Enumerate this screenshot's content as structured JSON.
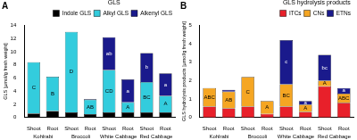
{
  "chart_data": [
    {
      "type": "bar",
      "panel": "A",
      "title": "GLS",
      "y_label": "GLS [µmol/g fresh weight]",
      "categories": [
        "Shoot",
        "Root",
        "Shoot",
        "Root",
        "Shoot",
        "Root",
        "Shoot",
        "Root"
      ],
      "groups": [
        "Kohlrabi",
        "Broccoli",
        "White Cabbage",
        "Red Cabbage"
      ],
      "stacked": true,
      "grid": false,
      "legend": "top",
      "ylim": [
        0,
        14
      ],
      "yticks": [
        0,
        2,
        4,
        6,
        8,
        10,
        12,
        14
      ],
      "series": [
        {
          "name": "Indole GLS",
          "color": "#000000",
          "values": [
            0.6,
            1.0,
            0.8,
            0.5,
            0.8,
            0.8,
            0.8,
            0.8
          ]
        },
        {
          "name": "Alkyl GLS",
          "color": "#33ccdd",
          "values": [
            7.8,
            5.2,
            12.2,
            2.2,
            6.4,
            1.5,
            4.6,
            2.5
          ],
          "letters": [
            "C",
            "B",
            "D",
            "AB",
            "CD",
            "A",
            "BC",
            "A"
          ]
        },
        {
          "name": "Alkenyl GLS",
          "color": "#1a1a8c",
          "values": [
            0,
            0,
            0,
            0.1,
            5.0,
            3.5,
            4.4,
            3.4
          ],
          "letters": [
            null,
            null,
            null,
            null,
            "ab",
            "a",
            "b",
            "a"
          ]
        }
      ]
    },
    {
      "type": "bar",
      "panel": "B",
      "title": "GLS hydrolysis products",
      "y_label": "GLS hydrolysis products [µmol/g fresh weight]",
      "categories": [
        "Shoot",
        "Root",
        "Shoot",
        "Root",
        "Shoot",
        "Root",
        "Shoot",
        "Root"
      ],
      "groups": [
        "Kohlrabi",
        "Broccoli",
        "White Cabbage",
        "Red Cabbage"
      ],
      "stacked": true,
      "grid": false,
      "legend": "top",
      "ylim": [
        0,
        5
      ],
      "yticks": [
        0,
        1,
        2,
        3,
        4,
        5
      ],
      "series": [
        {
          "name": "ITCs",
          "color": "#e8202a",
          "values": [
            0.6,
            0.5,
            0.6,
            0.2,
            0.6,
            0.3,
            1.7,
            0.8
          ]
        },
        {
          "name": "CNs",
          "color": "#f5a623",
          "values": [
            1.0,
            0.9,
            1.6,
            0.7,
            1.2,
            0.4,
            0.3,
            0.5
          ],
          "letters": [
            "ABC",
            "AB",
            "C",
            "A",
            "BC",
            "A",
            "A",
            "ABC"
          ]
        },
        {
          "name": "ETNs",
          "color": "#1a1a8c",
          "values": [
            0,
            0.1,
            0,
            0,
            2.4,
            0.2,
            1.4,
            0.3
          ],
          "letters": [
            null,
            null,
            null,
            null,
            "c",
            "a",
            "bc",
            "a"
          ]
        }
      ]
    }
  ]
}
